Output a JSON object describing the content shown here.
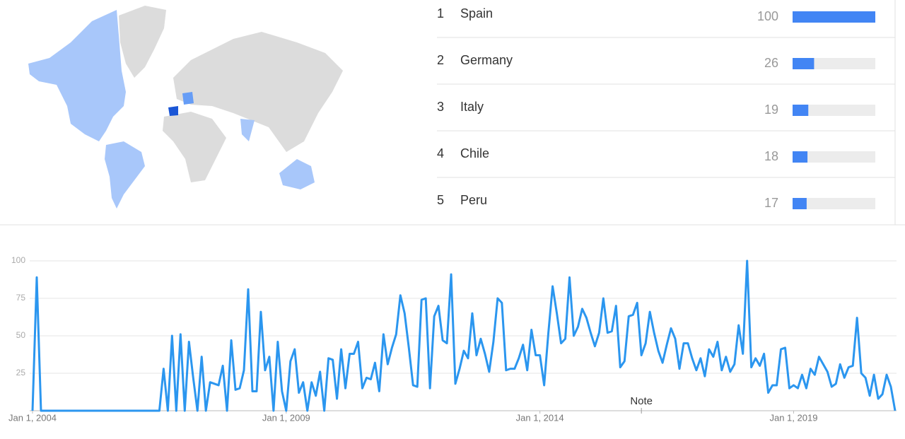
{
  "regions": {
    "rows": [
      {
        "rank": 1,
        "name": "Spain",
        "value": 100
      },
      {
        "rank": 2,
        "name": "Germany",
        "value": 26
      },
      {
        "rank": 3,
        "name": "Italy",
        "value": 19
      },
      {
        "rank": 4,
        "name": "Chile",
        "value": 18
      },
      {
        "rank": 5,
        "name": "Peru",
        "value": 17
      }
    ],
    "max": 100
  },
  "chart_data": {
    "type": "line",
    "color": "#2b96ef",
    "ylim": [
      0,
      100
    ],
    "yticks": [
      25,
      50,
      75,
      100
    ],
    "grid": true,
    "xlim": [
      "2004-01-01",
      "2021-01-01"
    ],
    "xticks": [
      {
        "value": "2004-01-01",
        "label": "Jan 1, 2004"
      },
      {
        "value": "2009-01-01",
        "label": "Jan 1, 2009"
      },
      {
        "value": "2014-01-01",
        "label": "Jan 1, 2014"
      },
      {
        "value": "2019-01-01",
        "label": "Jan 1, 2019"
      }
    ],
    "annotations": [
      {
        "x": "2016-01-01",
        "text": "Note"
      }
    ],
    "x": [
      "2004-01-01",
      "2004-02-01",
      "2004-03-01",
      "2004-04-01",
      "2004-05-01",
      "2004-06-01",
      "2004-07-01",
      "2004-08-01",
      "2004-09-01",
      "2004-10-01",
      "2004-11-01",
      "2004-12-01",
      "2005-01-01",
      "2005-02-01",
      "2005-03-01",
      "2005-04-01",
      "2005-05-01",
      "2005-06-01",
      "2005-07-01",
      "2005-08-01",
      "2005-09-01",
      "2005-10-01",
      "2005-11-01",
      "2005-12-01",
      "2006-01-01",
      "2006-02-01",
      "2006-03-01",
      "2006-04-01",
      "2006-05-01",
      "2006-06-01",
      "2006-07-01",
      "2006-08-01",
      "2006-09-01",
      "2006-10-01",
      "2006-11-01",
      "2006-12-01",
      "2007-01-01",
      "2007-02-01",
      "2007-03-01",
      "2007-04-01",
      "2007-05-01",
      "2007-06-01",
      "2007-07-01",
      "2007-08-01",
      "2007-09-01",
      "2007-10-01",
      "2007-11-01",
      "2007-12-01",
      "2008-01-01",
      "2008-02-01",
      "2008-03-01",
      "2008-04-01",
      "2008-05-01",
      "2008-06-01",
      "2008-07-01",
      "2008-08-01",
      "2008-09-01",
      "2008-10-01",
      "2008-11-01",
      "2008-12-01",
      "2009-01-01",
      "2009-02-01",
      "2009-03-01",
      "2009-04-01",
      "2009-05-01",
      "2009-06-01",
      "2009-07-01",
      "2009-08-01",
      "2009-09-01",
      "2009-10-01",
      "2009-11-01",
      "2009-12-01",
      "2010-01-01",
      "2010-02-01",
      "2010-03-01",
      "2010-04-01",
      "2010-05-01",
      "2010-06-01",
      "2010-07-01",
      "2010-08-01",
      "2010-09-01",
      "2010-10-01",
      "2010-11-01",
      "2010-12-01",
      "2011-01-01",
      "2011-02-01",
      "2011-03-01",
      "2011-04-01",
      "2011-05-01",
      "2011-06-01",
      "2011-07-01",
      "2011-08-01",
      "2011-09-01",
      "2011-10-01",
      "2011-11-01",
      "2011-12-01",
      "2012-01-01",
      "2012-02-01",
      "2012-03-01",
      "2012-04-01",
      "2012-05-01",
      "2012-06-01",
      "2012-07-01",
      "2012-08-01",
      "2012-09-01",
      "2012-10-01",
      "2012-11-01",
      "2012-12-01",
      "2013-01-01",
      "2013-02-01",
      "2013-03-01",
      "2013-04-01",
      "2013-05-01",
      "2013-06-01",
      "2013-07-01",
      "2013-08-01",
      "2013-09-01",
      "2013-10-01",
      "2013-11-01",
      "2013-12-01",
      "2014-01-01",
      "2014-02-01",
      "2014-03-01",
      "2014-04-01",
      "2014-05-01",
      "2014-06-01",
      "2014-07-01",
      "2014-08-01",
      "2014-09-01",
      "2014-10-01",
      "2014-11-01",
      "2014-12-01",
      "2015-01-01",
      "2015-02-01",
      "2015-03-01",
      "2015-04-01",
      "2015-05-01",
      "2015-06-01",
      "2015-07-01",
      "2015-08-01",
      "2015-09-01",
      "2015-10-01",
      "2015-11-01",
      "2015-12-01",
      "2016-01-01",
      "2016-02-01",
      "2016-03-01",
      "2016-04-01",
      "2016-05-01",
      "2016-06-01",
      "2016-07-01",
      "2016-08-01",
      "2016-09-01",
      "2016-10-01",
      "2016-11-01",
      "2016-12-01",
      "2017-01-01",
      "2017-02-01",
      "2017-03-01",
      "2017-04-01",
      "2017-05-01",
      "2017-06-01",
      "2017-07-01",
      "2017-08-01",
      "2017-09-01",
      "2017-10-01",
      "2017-11-01",
      "2017-12-01",
      "2018-01-01",
      "2018-02-01",
      "2018-03-01",
      "2018-04-01",
      "2018-05-01",
      "2018-06-01",
      "2018-07-01",
      "2018-08-01",
      "2018-09-01",
      "2018-10-01",
      "2018-11-01",
      "2018-12-01",
      "2019-01-01",
      "2019-02-01",
      "2019-03-01",
      "2019-04-01",
      "2019-05-01",
      "2019-06-01",
      "2019-07-01",
      "2019-08-01",
      "2019-09-01",
      "2019-10-01",
      "2019-11-01",
      "2019-12-01",
      "2020-01-01",
      "2020-02-01",
      "2020-03-01",
      "2020-04-01",
      "2020-05-01",
      "2020-06-01",
      "2020-07-01",
      "2020-08-01",
      "2020-09-01",
      "2020-10-01",
      "2020-11-01",
      "2020-12-01",
      "2021-01-01"
    ],
    "values": [
      0,
      89,
      0,
      0,
      0,
      0,
      0,
      0,
      0,
      0,
      0,
      0,
      0,
      0,
      0,
      0,
      0,
      0,
      0,
      0,
      0,
      0,
      0,
      0,
      0,
      0,
      0,
      0,
      0,
      0,
      0,
      28,
      0,
      50,
      0,
      51,
      0,
      46,
      22,
      0,
      36,
      0,
      19,
      18,
      17,
      30,
      0,
      47,
      14,
      15,
      27,
      81,
      13,
      13,
      66,
      27,
      36,
      0,
      46,
      13,
      0,
      33,
      41,
      12,
      19,
      0,
      19,
      10,
      26,
      0,
      35,
      34,
      8,
      41,
      15,
      38,
      38,
      46,
      15,
      22,
      21,
      32,
      13,
      51,
      31,
      42,
      51,
      77,
      65,
      42,
      17,
      16,
      74,
      75,
      15,
      63,
      70,
      47,
      45,
      91,
      18,
      28,
      40,
      35,
      65,
      37,
      48,
      38,
      26,
      46,
      75,
      72,
      27,
      28,
      28,
      35,
      44,
      27,
      54,
      37,
      37,
      17,
      52,
      83,
      65,
      45,
      48,
      89,
      50,
      56,
      68,
      62,
      52,
      43,
      52,
      75,
      52,
      53,
      70,
      29,
      33,
      63,
      64,
      72,
      37,
      45,
      66,
      52,
      40,
      32,
      44,
      55,
      48,
      28,
      45,
      45,
      35,
      27,
      35,
      23,
      41,
      36,
      46,
      27,
      36,
      26,
      31,
      57,
      38,
      100,
      29,
      35,
      30,
      38,
      12,
      17,
      17,
      41,
      42,
      15,
      17,
      15,
      24,
      15,
      28,
      24,
      36,
      31,
      26,
      16,
      18,
      31,
      22,
      29,
      30,
      62,
      25,
      22,
      10,
      24,
      8,
      11,
      24,
      16,
      0
    ]
  }
}
